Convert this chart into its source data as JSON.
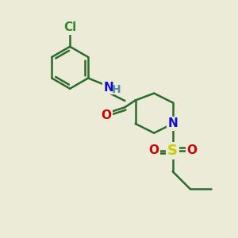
{
  "bg_color": "#ebebd8",
  "bond_color": "#2d6b2d",
  "bond_width": 1.8,
  "atom_colors": {
    "Cl": "#2d8b2d",
    "N": "#1010cc",
    "O": "#cc0000",
    "S": "#cccc00",
    "C": "#000000",
    "H": "#5588aa"
  },
  "font_size_atoms": 11,
  "font_size_nh": 10
}
